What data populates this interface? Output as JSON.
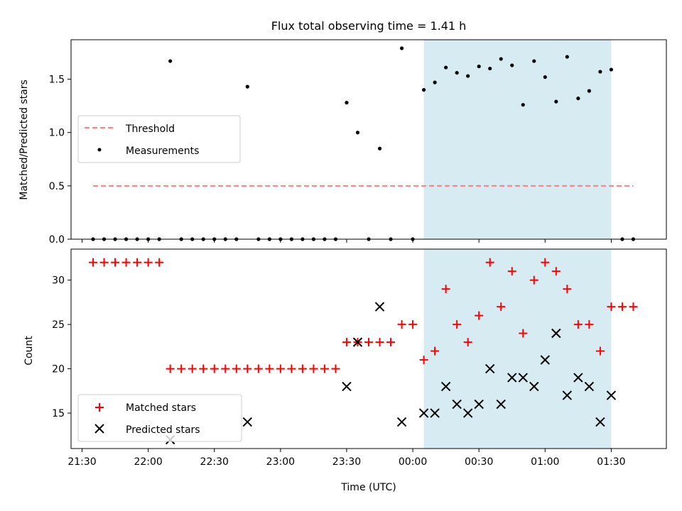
{
  "chart_data": [
    {
      "type": "scatter",
      "title": "Flux total observing time = 1.41 h",
      "ylabel": "Matched/Predicted stars",
      "xlabel": "",
      "xlim": [
        "21:25",
        "23:55+2h"
      ],
      "ylim": [
        0,
        1.87
      ],
      "yticks": [
        "0.0",
        "0.5",
        "1.0",
        "1.5"
      ],
      "legend_loc": "center-left",
      "grid": false,
      "threshold": {
        "name": "Threshold",
        "value": 0.5,
        "x_start": "21:35",
        "x_end": "01:40",
        "color": "#ff7f7f"
      },
      "highlight_span": {
        "start": "00:05",
        "end": "01:30",
        "color": "#add8e6"
      },
      "series": [
        {
          "name": "Measurements",
          "color": "#000000",
          "marker": "dot",
          "x": [
            "21:35",
            "21:40",
            "21:45",
            "21:50",
            "21:55",
            "22:00",
            "22:05",
            "22:10",
            "22:15",
            "22:20",
            "22:25",
            "22:30",
            "22:35",
            "22:40",
            "22:45",
            "22:50",
            "22:55",
            "23:00",
            "23:05",
            "23:10",
            "23:15",
            "23:20",
            "23:25",
            "23:30",
            "23:35",
            "23:40",
            "23:45",
            "23:50",
            "23:55",
            "00:00",
            "00:05",
            "00:10",
            "00:15",
            "00:20",
            "00:25",
            "00:30",
            "00:35",
            "00:40",
            "00:45",
            "00:50",
            "00:55",
            "01:00",
            "01:05",
            "01:10",
            "01:15",
            "01:20",
            "01:25",
            "01:30",
            "01:35",
            "01:40"
          ],
          "y": [
            0,
            0,
            0,
            0,
            0,
            0,
            0,
            1.67,
            0,
            0,
            0,
            0,
            0,
            0,
            1.43,
            0,
            0,
            0,
            0,
            0,
            0,
            0,
            0,
            1.28,
            1.0,
            0,
            0.85,
            0,
            1.79,
            0,
            1.4,
            1.47,
            1.61,
            1.56,
            1.53,
            1.62,
            1.6,
            1.69,
            1.63,
            1.26,
            1.67,
            1.52,
            1.29,
            1.71,
            1.32,
            1.39,
            1.57,
            1.59,
            0,
            0
          ]
        }
      ]
    },
    {
      "type": "scatter",
      "title": "",
      "ylabel": "Count",
      "xlabel": "Time (UTC)",
      "xlim": [
        "21:25",
        "23:55+2h"
      ],
      "ylim": [
        11,
        33.5
      ],
      "yticks": [
        "15",
        "20",
        "25",
        "30"
      ],
      "xticks": [
        "21:30",
        "22:00",
        "22:30",
        "23:00",
        "23:30",
        "00:00",
        "00:30",
        "01:00",
        "01:30"
      ],
      "legend_loc": "lower-left",
      "grid": false,
      "highlight_span": {
        "start": "00:05",
        "end": "01:30",
        "color": "#add8e6"
      },
      "series": [
        {
          "name": "Matched stars",
          "color": "#ff0000",
          "marker": "plus",
          "x": [
            "21:35",
            "21:40",
            "21:45",
            "21:50",
            "21:55",
            "22:00",
            "22:05",
            "22:10",
            "22:15",
            "22:20",
            "22:25",
            "22:30",
            "22:35",
            "22:40",
            "22:45",
            "22:50",
            "22:55",
            "23:00",
            "23:05",
            "23:10",
            "23:15",
            "23:20",
            "23:25",
            "23:30",
            "23:35",
            "23:40",
            "23:45",
            "23:50",
            "23:55",
            "00:00",
            "00:05",
            "00:10",
            "00:15",
            "00:20",
            "00:25",
            "00:30",
            "00:35",
            "00:40",
            "00:45",
            "00:50",
            "00:55",
            "01:00",
            "01:05",
            "01:10",
            "01:15",
            "01:20",
            "01:25",
            "01:30",
            "01:35",
            "01:40"
          ],
          "y": [
            32,
            32,
            32,
            32,
            32,
            32,
            32,
            20,
            20,
            20,
            20,
            20,
            20,
            20,
            20,
            20,
            20,
            20,
            20,
            20,
            20,
            20,
            20,
            23,
            23,
            23,
            23,
            23,
            25,
            25,
            21,
            22,
            29,
            25,
            23,
            26,
            32,
            27,
            31,
            24,
            30,
            32,
            31,
            29,
            25,
            25,
            22,
            27,
            27,
            27
          ]
        },
        {
          "name": "Predicted stars",
          "color": "#000000",
          "marker": "x",
          "x": [
            "22:10",
            "22:45",
            "23:30",
            "23:35",
            "23:45",
            "23:55",
            "00:05",
            "00:10",
            "00:15",
            "00:20",
            "00:25",
            "00:30",
            "00:35",
            "00:40",
            "00:45",
            "00:50",
            "00:55",
            "01:00",
            "01:05",
            "01:10",
            "01:15",
            "01:20",
            "01:25",
            "01:30"
          ],
          "y": [
            12,
            14,
            18,
            23,
            27,
            14,
            15,
            15,
            18,
            16,
            15,
            16,
            20,
            16,
            19,
            19,
            18,
            21,
            24,
            17,
            19,
            18,
            14,
            17
          ]
        }
      ]
    }
  ]
}
